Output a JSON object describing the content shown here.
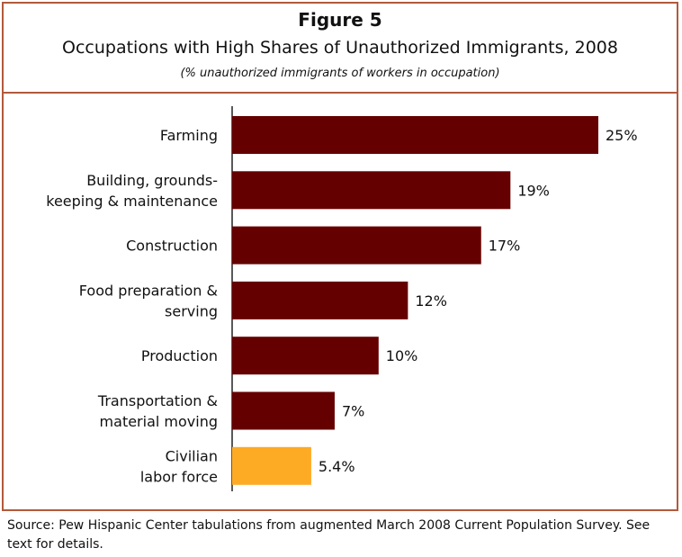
{
  "header": {
    "figure_label": "Figure 5",
    "title": "Occupations with High Shares of Unauthorized Immigrants, 2008",
    "subtitle": "(% unauthorized immigrants of workers in occupation)"
  },
  "chart_data": {
    "type": "bar",
    "orientation": "horizontal",
    "categories": [
      [
        "Farming"
      ],
      [
        "Building, grounds-",
        "keeping & maintenance"
      ],
      [
        "Construction"
      ],
      [
        "Food preparation &",
        "serving"
      ],
      [
        "Production"
      ],
      [
        "Transportation &",
        "material moving"
      ],
      [
        "Civilian",
        "labor force"
      ]
    ],
    "values": [
      25,
      19,
      17,
      12,
      10,
      7,
      5.4
    ],
    "value_labels": [
      "25%",
      "19%",
      "17%",
      "12%",
      "10%",
      "7%",
      "5.4%"
    ],
    "colors": [
      "#650000",
      "#650000",
      "#650000",
      "#650000",
      "#650000",
      "#650000",
      "#fdaa25"
    ],
    "xlim": [
      0,
      25
    ],
    "grid": false,
    "legend": "none"
  },
  "source": "Source:  Pew Hispanic Center tabulations from augmented March 2008 Current Population Survey.  See text for details.",
  "colors": {
    "border": "#b25a3c",
    "bar": "#650000",
    "highlight_bar": "#fdaa25"
  }
}
